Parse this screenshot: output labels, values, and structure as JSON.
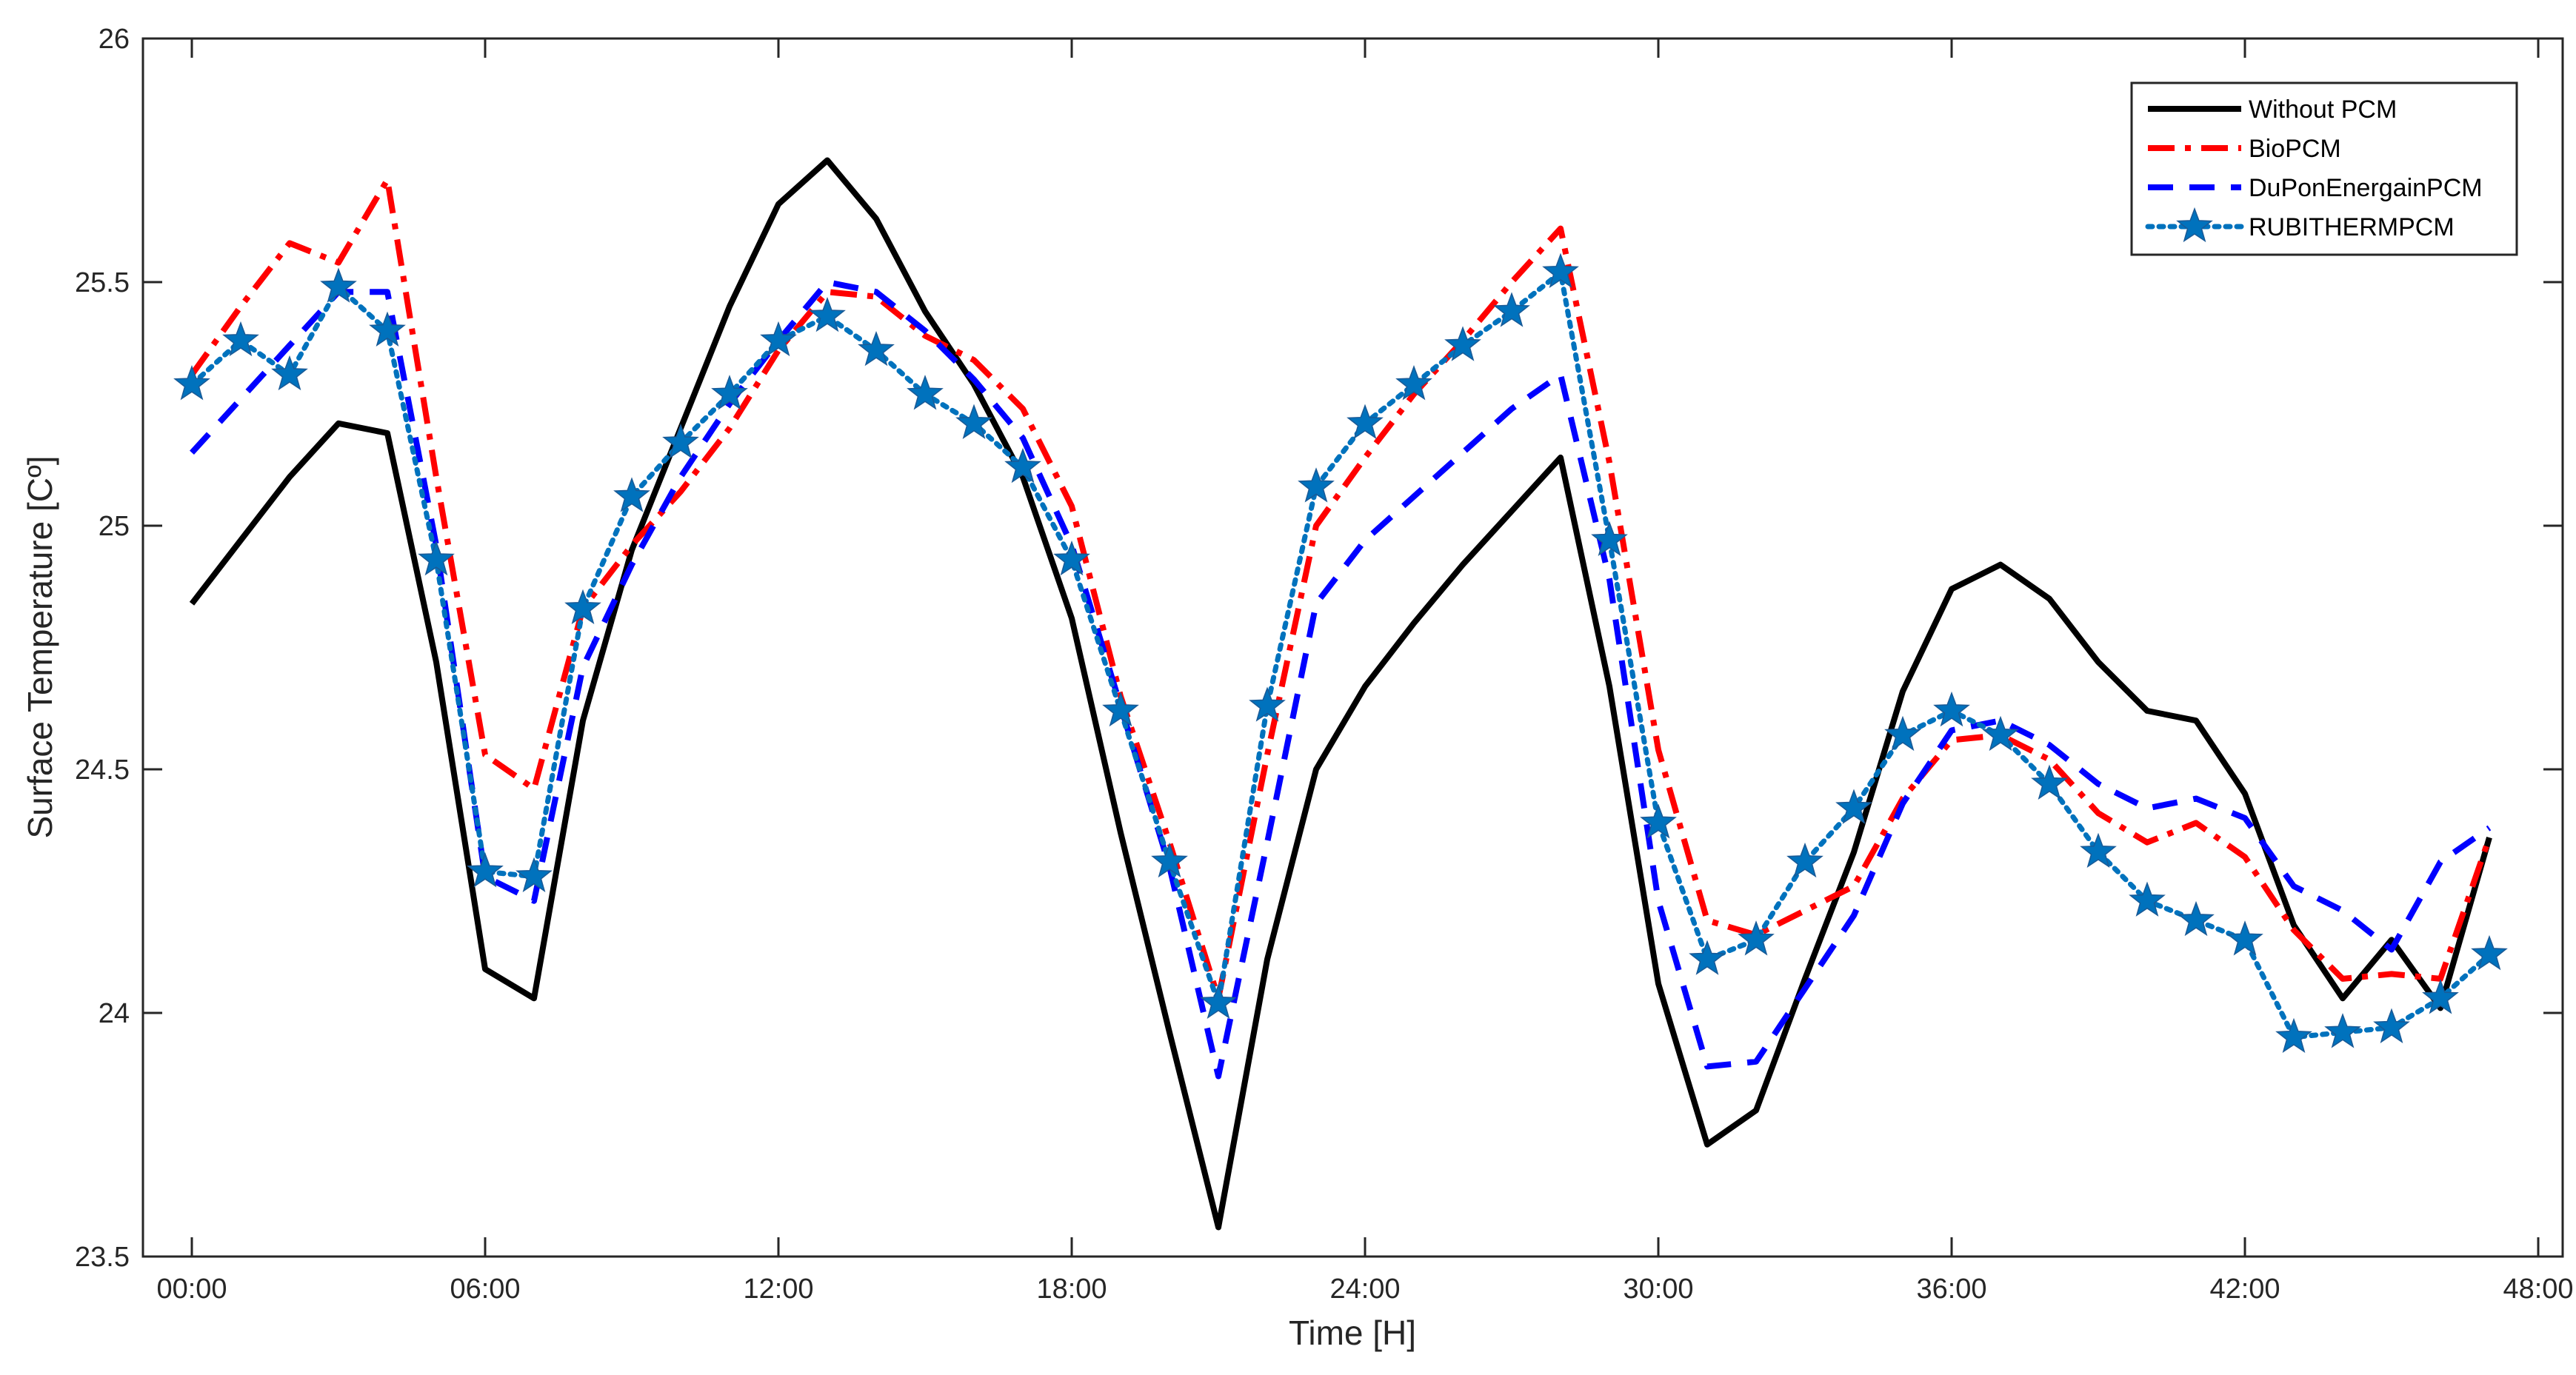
{
  "chart_data": {
    "type": "line",
    "title": "",
    "xlabel": "Time [H]",
    "ylabel": "Surface Temperature [Cº]",
    "xlim": [
      -1,
      48.5
    ],
    "ylim": [
      23.5,
      26
    ],
    "xticks": [
      0,
      6,
      12,
      18,
      24,
      30,
      36,
      42,
      48
    ],
    "xtick_labels": [
      "00:00",
      "06:00",
      "12:00",
      "18:00",
      "24:00",
      "30:00",
      "36:00",
      "42:00",
      "48:00"
    ],
    "yticks": [
      23.5,
      24,
      24.5,
      25,
      25.5,
      26
    ],
    "ytick_labels": [
      "23.5",
      "24",
      "24.5",
      "25",
      "25.5",
      "26"
    ],
    "grid": false,
    "legend_position": "top-right",
    "x": [
      0,
      1,
      2,
      3,
      4,
      5,
      6,
      7,
      8,
      9,
      10,
      11,
      12,
      13,
      14,
      15,
      16,
      17,
      18,
      19,
      20,
      21,
      22,
      23,
      24,
      25,
      26,
      27,
      28,
      29,
      30,
      31,
      32,
      33,
      34,
      35,
      36,
      37,
      38,
      39,
      40,
      41,
      42,
      43,
      44,
      45,
      46,
      47
    ],
    "series": [
      {
        "name": "Without PCM",
        "color": "#000000",
        "style": "solid",
        "values": [
          24.84,
          24.97,
          25.1,
          25.21,
          25.19,
          24.72,
          24.09,
          24.03,
          24.6,
          24.95,
          25.2,
          25.45,
          25.66,
          25.75,
          25.63,
          25.44,
          25.29,
          25.1,
          24.81,
          24.37,
          23.96,
          23.56,
          24.11,
          24.5,
          24.67,
          24.8,
          24.92,
          25.03,
          25.14,
          24.67,
          24.06,
          23.73,
          23.8,
          24.07,
          24.33,
          24.66,
          24.87,
          24.92,
          24.85,
          24.72,
          24.62,
          24.6,
          24.45,
          24.18,
          24.03,
          24.15,
          24.01,
          24.36
        ]
      },
      {
        "name": "BioPCM",
        "color": "#ff0000",
        "style": "dashdot",
        "values": [
          25.31,
          25.45,
          25.58,
          25.54,
          25.71,
          25.1,
          24.53,
          24.46,
          24.83,
          24.96,
          25.07,
          25.2,
          25.36,
          25.48,
          25.47,
          25.39,
          25.34,
          25.24,
          25.04,
          24.65,
          24.35,
          24.03,
          24.53,
          25.0,
          25.14,
          25.27,
          25.38,
          25.5,
          25.61,
          25.13,
          24.54,
          24.19,
          24.16,
          24.21,
          24.26,
          24.44,
          24.56,
          24.57,
          24.52,
          24.41,
          24.35,
          24.39,
          24.32,
          24.17,
          24.07,
          24.08,
          24.07,
          24.36
        ]
      },
      {
        "name": "DuPonEnergainPCM",
        "color": "#0000ff",
        "style": "dashed",
        "values": [
          25.15,
          25.26,
          25.37,
          25.48,
          25.48,
          24.96,
          24.28,
          24.23,
          24.71,
          24.92,
          25.1,
          25.25,
          25.38,
          25.5,
          25.48,
          25.4,
          25.3,
          25.18,
          24.96,
          24.63,
          24.3,
          23.87,
          24.35,
          24.84,
          24.97,
          25.06,
          25.15,
          25.24,
          25.31,
          24.89,
          24.23,
          23.89,
          23.9,
          24.05,
          24.2,
          24.43,
          24.58,
          24.6,
          24.55,
          24.47,
          24.42,
          24.44,
          24.4,
          24.26,
          24.21,
          24.13,
          24.31,
          24.38
        ]
      },
      {
        "name": "RUBITHERMPCM",
        "color": "#0072bd",
        "style": "dotted-star",
        "values": [
          25.29,
          25.38,
          25.31,
          25.49,
          25.4,
          24.93,
          24.29,
          24.28,
          24.83,
          25.06,
          25.17,
          25.27,
          25.38,
          25.43,
          25.36,
          25.27,
          25.21,
          25.12,
          24.93,
          24.62,
          24.31,
          24.02,
          24.63,
          25.08,
          25.21,
          25.29,
          25.37,
          25.44,
          25.52,
          24.97,
          24.39,
          24.11,
          24.15,
          24.31,
          24.42,
          24.57,
          24.62,
          24.57,
          24.47,
          24.33,
          24.23,
          24.19,
          24.15,
          23.95,
          23.96,
          23.97,
          24.03,
          24.12
        ]
      }
    ]
  }
}
